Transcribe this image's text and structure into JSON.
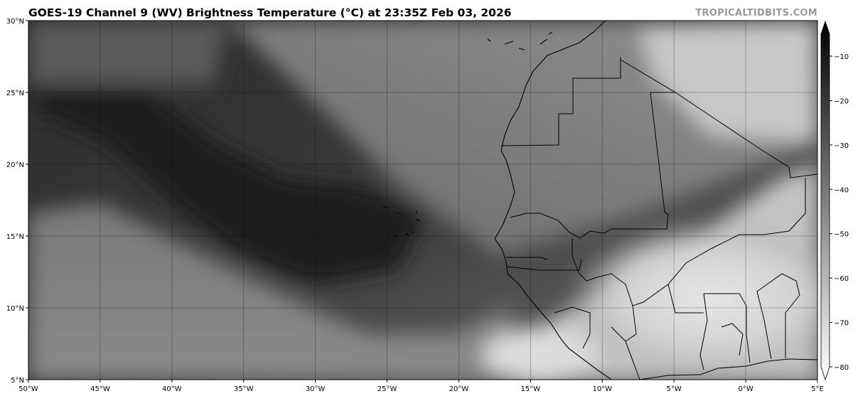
{
  "title": "GOES-19 Channel 9 (WV) Brightness Temperature (°C) at 23:35Z Feb 03, 2026",
  "brand": "TROPICALTIDBITS.COM",
  "map": {
    "projection": "equirectangular",
    "lon_range": [
      -50,
      5
    ],
    "lat_range": [
      5,
      30
    ],
    "grid": true,
    "x_ticks": [
      "50°W",
      "45°W",
      "40°W",
      "35°W",
      "30°W",
      "25°W",
      "20°W",
      "15°W",
      "10°W",
      "5°W",
      "0°W",
      "5°E"
    ],
    "y_ticks": [
      "5°N",
      "10°N",
      "15°N",
      "20°N",
      "25°N",
      "30°N"
    ]
  },
  "colorbar": {
    "units": "°C",
    "range": [
      -80,
      -5
    ],
    "colormap": "grayscale (black warm, white cold)",
    "ticks": [
      "−10",
      "−20",
      "−30",
      "−40",
      "−50",
      "−60",
      "−70",
      "−80"
    ],
    "extend": "both"
  }
}
